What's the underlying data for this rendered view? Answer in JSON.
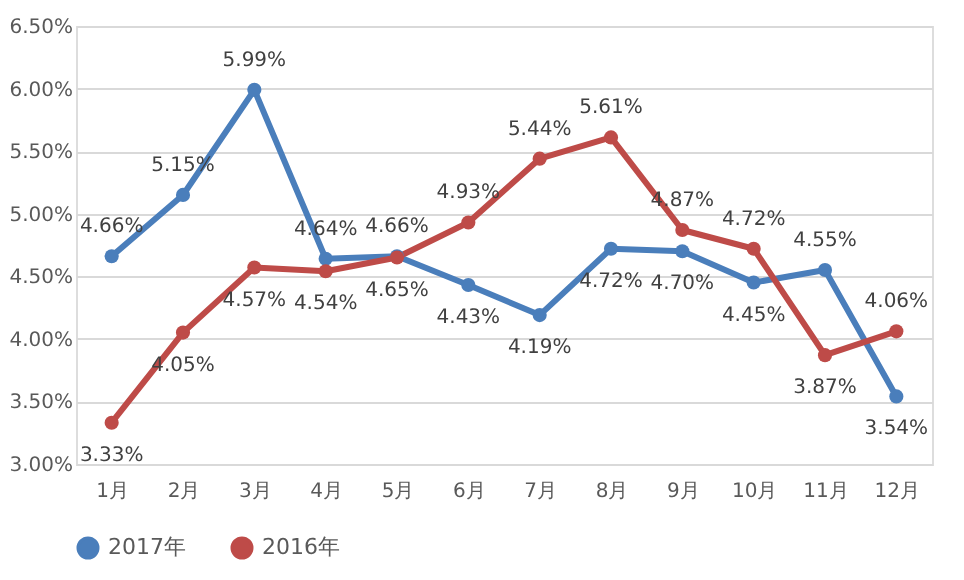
{
  "chart_data": {
    "type": "line",
    "categories": [
      "1月",
      "2月",
      "3月",
      "4月",
      "5月",
      "6月",
      "7月",
      "8月",
      "9月",
      "10月",
      "11月",
      "12月"
    ],
    "series": [
      {
        "name": "2017年",
        "color": "#4a7ebb",
        "values": [
          4.66,
          5.15,
          5.99,
          4.64,
          4.66,
          4.43,
          4.19,
          4.72,
          4.7,
          4.45,
          4.55,
          3.54
        ],
        "value_labels": [
          "4.66%",
          "5.15%",
          "5.99%",
          "4.64%",
          "4.66%",
          "4.43%",
          "4.19%",
          "4.72%",
          "4.70%",
          "4.45%",
          "4.55%",
          "3.54%"
        ]
      },
      {
        "name": "2016年",
        "color": "#be4b48",
        "values": [
          3.33,
          4.05,
          4.57,
          4.54,
          4.65,
          4.93,
          5.44,
          5.61,
          4.87,
          4.72,
          3.87,
          4.06
        ],
        "value_labels": [
          "3.33%",
          "4.05%",
          "4.57%",
          "4.54%",
          "4.65%",
          "4.93%",
          "5.44%",
          "5.61%",
          "4.87%",
          "4.72%",
          "3.87%",
          "4.06%"
        ]
      }
    ],
    "ylim": [
      3.0,
      6.5
    ],
    "yticks": [
      {
        "value": 3.0,
        "label": "3.00%"
      },
      {
        "value": 3.5,
        "label": "3.50%"
      },
      {
        "value": 4.0,
        "label": "4.00%"
      },
      {
        "value": 4.5,
        "label": "4.50%"
      },
      {
        "value": 5.0,
        "label": "5.00%"
      },
      {
        "value": 5.5,
        "label": "5.50%"
      },
      {
        "value": 6.0,
        "label": "6.00%"
      },
      {
        "value": 6.5,
        "label": "6.50%"
      }
    ],
    "grid": "y",
    "legend": "bottom",
    "marker": "circle",
    "line_style": "solid"
  }
}
